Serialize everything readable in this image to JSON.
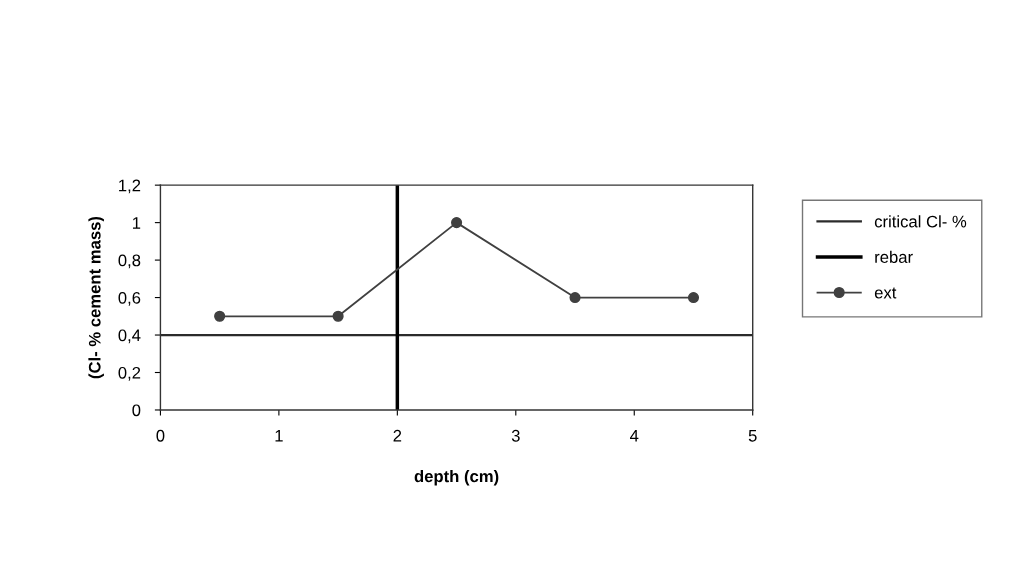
{
  "chart_data": {
    "type": "line",
    "xlabel": "depth (cm)",
    "ylabel": "(Cl- % cement mass)",
    "x": [
      0.5,
      1.5,
      2.5,
      3.5,
      4.5
    ],
    "series": [
      {
        "name": "ext",
        "color": "#404040",
        "values": [
          0.5,
          0.5,
          1.0,
          0.6,
          0.6
        ]
      }
    ],
    "ref_lines": [
      {
        "axis": "y",
        "value": 0.4,
        "label": "critical Cl- %",
        "color": "#2b2b2b"
      },
      {
        "axis": "x",
        "value": 2,
        "label": "rebar",
        "color": "#000000"
      }
    ],
    "xlim": [
      0,
      5
    ],
    "xticks": [
      0,
      1,
      2,
      3,
      4,
      5
    ],
    "ylim": [
      0,
      1.2
    ],
    "yticks": [
      0,
      {
        "value": 0.2,
        "label": "0,2"
      },
      {
        "value": 0.4,
        "label": "0,4"
      },
      {
        "value": 0.6,
        "label": "0,6"
      },
      {
        "value": 0.8,
        "label": "0,8"
      },
      1,
      {
        "value": 1.2,
        "label": "1,2"
      }
    ],
    "marker": "circle",
    "line_style": "solid",
    "grid": false,
    "legend": "right"
  }
}
